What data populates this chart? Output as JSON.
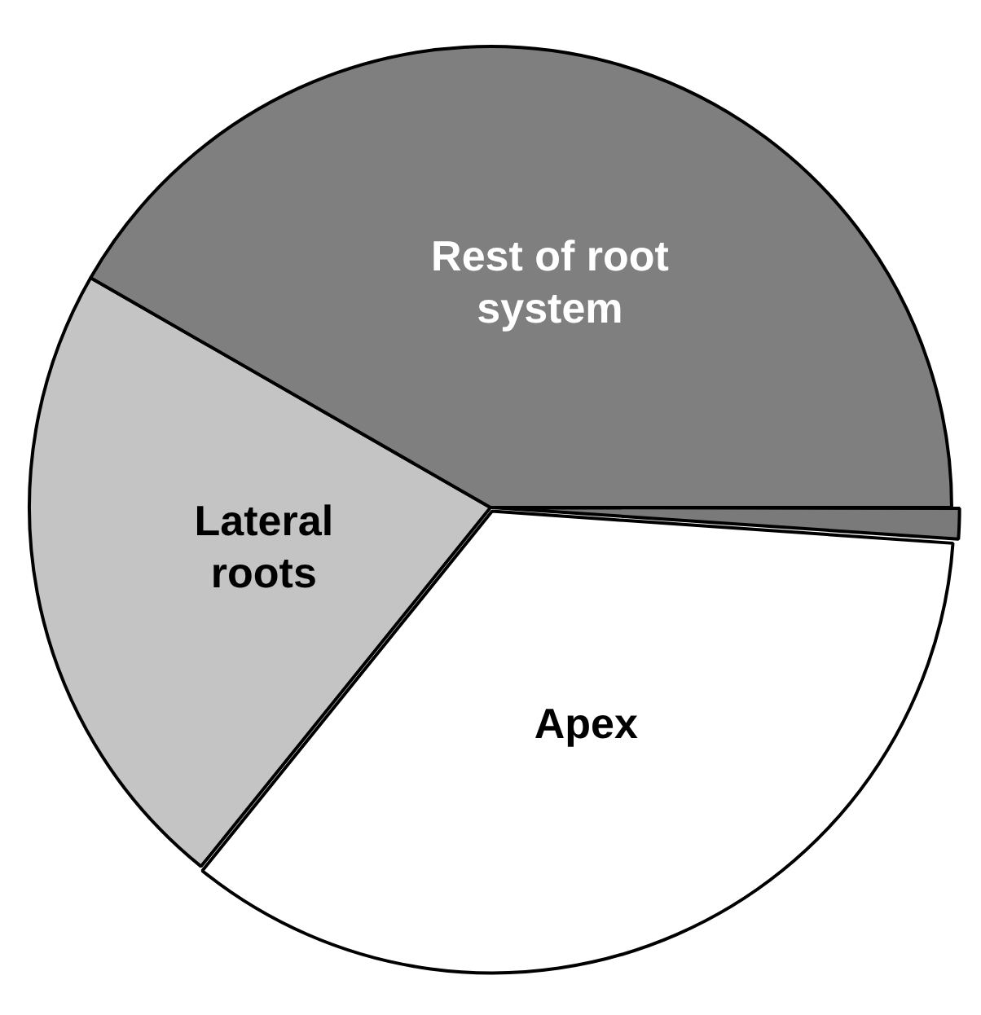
{
  "chart_data": {
    "type": "pie",
    "categories": [
      null,
      "Apex",
      "Lateral roots",
      "Rest of root system"
    ],
    "values": [
      1.1,
      34.7,
      22.5,
      41.7
    ],
    "colors": [
      "#7a7a7a",
      "#ffffff",
      "#c4c4c4",
      "#7f7f7f"
    ],
    "legend": false
  }
}
